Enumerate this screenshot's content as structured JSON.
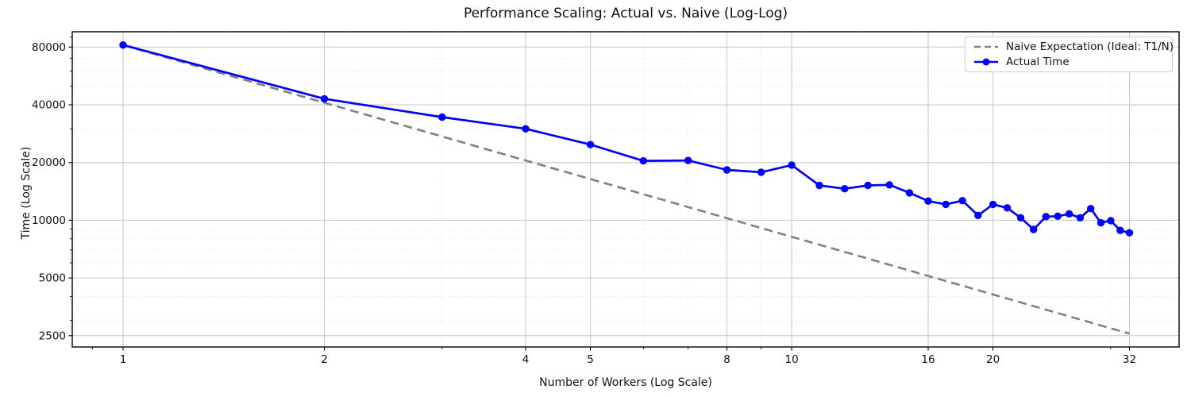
{
  "title": "Performance Scaling: Actual vs. Naive (Log-Log)",
  "chart_data": {
    "type": "line",
    "title": "Performance Scaling: Actual vs. Naive (Log-Log)",
    "xlabel": "Number of Workers (Log Scale)",
    "ylabel": "Time (Log Scale)",
    "x_scale": "log",
    "y_scale": "log",
    "grid": "both (solid major, dotted minor)",
    "legend_position": "upper right",
    "x": [
      1,
      2,
      3,
      4,
      5,
      6,
      7,
      8,
      9,
      10,
      11,
      12,
      13,
      14,
      15,
      16,
      17,
      18,
      19,
      20,
      21,
      22,
      23,
      24,
      25,
      26,
      27,
      28,
      29,
      30,
      31,
      32
    ],
    "series": [
      {
        "name": "Naive Expectation (Ideal: T1/N)",
        "style": "dashed",
        "color": "#808080",
        "formula": "T1/N with T1 = 82000",
        "values": [
          82000,
          41000,
          27333,
          20500,
          16400,
          13667,
          11714,
          10250,
          9111,
          8200,
          7455,
          6833,
          6308,
          5857,
          5467,
          5125,
          4824,
          4556,
          4316,
          4100,
          3905,
          3727,
          3565,
          3417,
          3280,
          3154,
          3037,
          2929,
          2828,
          2733,
          2645,
          2563
        ]
      },
      {
        "name": "Actual Time",
        "style": "solid-with-markers",
        "color": "#0000ff",
        "values": [
          82000,
          43000,
          34500,
          30000,
          24800,
          20400,
          20500,
          18300,
          17800,
          19400,
          15200,
          14600,
          15200,
          15300,
          13900,
          12600,
          12100,
          12650,
          10600,
          12100,
          11600,
          10300,
          8950,
          10450,
          10500,
          10800,
          10300,
          11500,
          9700,
          9950,
          8850,
          8600
        ]
      }
    ],
    "x_ticks": [
      1,
      2,
      4,
      5,
      8,
      10,
      16,
      20,
      32
    ],
    "y_ticks": [
      2500,
      5000,
      10000,
      20000,
      40000,
      80000
    ],
    "x_minor_gridlines": [
      3,
      6,
      7,
      9,
      30
    ],
    "y_minor_gridlines": [
      3000,
      4000,
      6000,
      7000,
      8000,
      9000,
      30000,
      50000,
      60000,
      70000,
      90000
    ],
    "xlim": [
      0.84,
      38
    ],
    "ylim": [
      2180,
      96000
    ]
  },
  "colors": {
    "actual": "#0000ff",
    "naive": "#808080",
    "grid_major": "#c6c6c6",
    "grid_minor": "#dedede",
    "spine": "#000000",
    "background": "#ffffff",
    "text": "#111111"
  }
}
